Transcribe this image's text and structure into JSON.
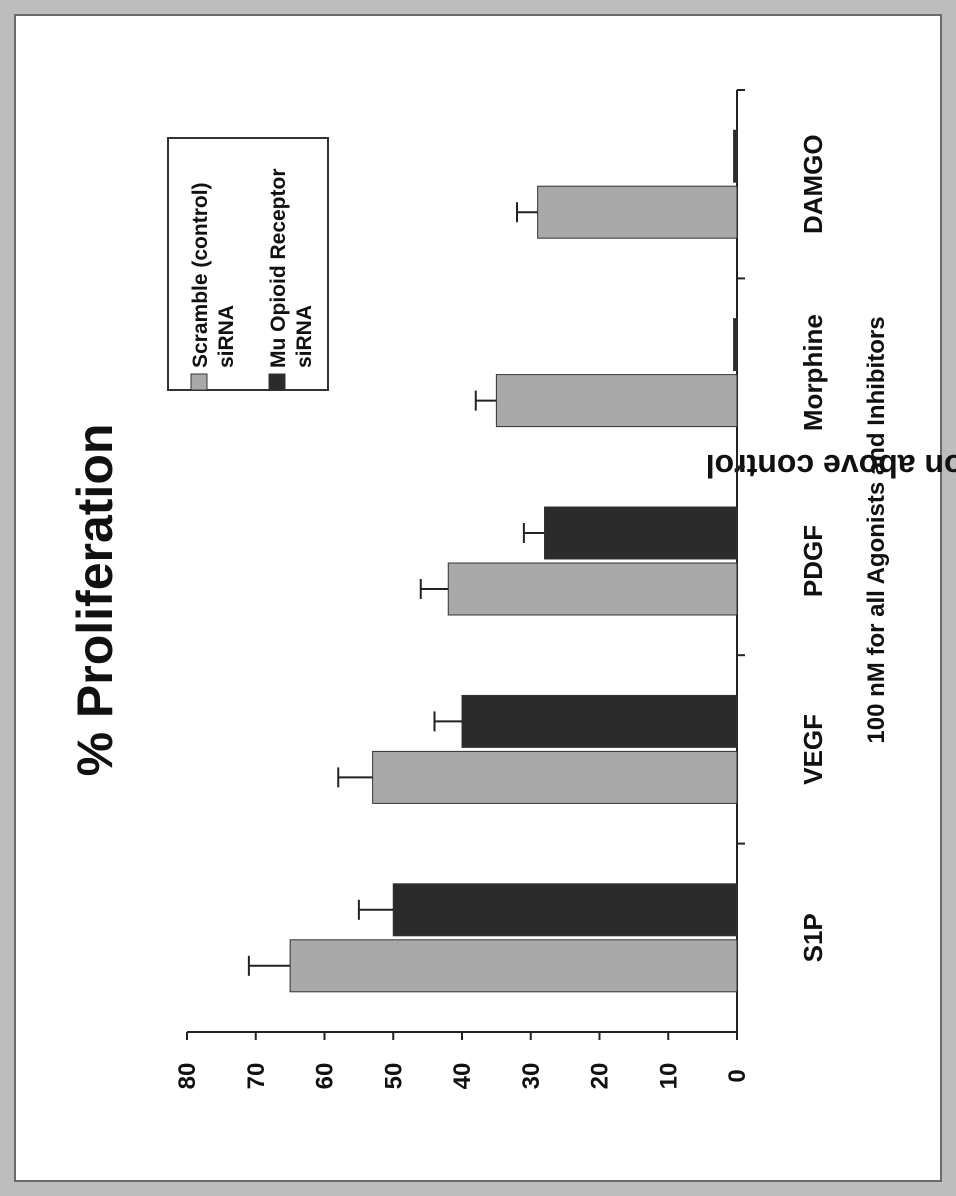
{
  "chart_data": {
    "type": "bar",
    "orientation": "vertical, figure rotated 90 degrees clockwise",
    "title": "% Proliferation",
    "xlabel": "100 nM for all Agonists and Inhibitors",
    "ylabel": "% Proliferation above control",
    "categories": [
      "S1P",
      "VEGF",
      "PDGF",
      "Morphine",
      "DAMGO"
    ],
    "ylim": [
      0,
      80
    ],
    "yticks": [
      0,
      10,
      20,
      30,
      40,
      50,
      60,
      70,
      80
    ],
    "grid": false,
    "legend_placement": "top-right",
    "series": [
      {
        "name": "Scramble (control) siRNA",
        "values": [
          65,
          53,
          42,
          35,
          29
        ],
        "errors": [
          6,
          5,
          4,
          3,
          3
        ],
        "color": "#a9a9a9"
      },
      {
        "name": "Mu Opioid Receptor siRNA",
        "values": [
          50,
          40,
          28,
          0.5,
          0.5
        ],
        "errors": [
          5,
          4,
          3,
          0,
          0
        ],
        "color": "#2b2b2b"
      }
    ]
  },
  "legend": {
    "items": [
      {
        "line1": "Scramble (control)",
        "line2": "siRNA",
        "color": "#a9a9a9"
      },
      {
        "line1": "Mu Opioid Receptor",
        "line2": "siRNA",
        "color": "#2b2b2b"
      }
    ]
  }
}
